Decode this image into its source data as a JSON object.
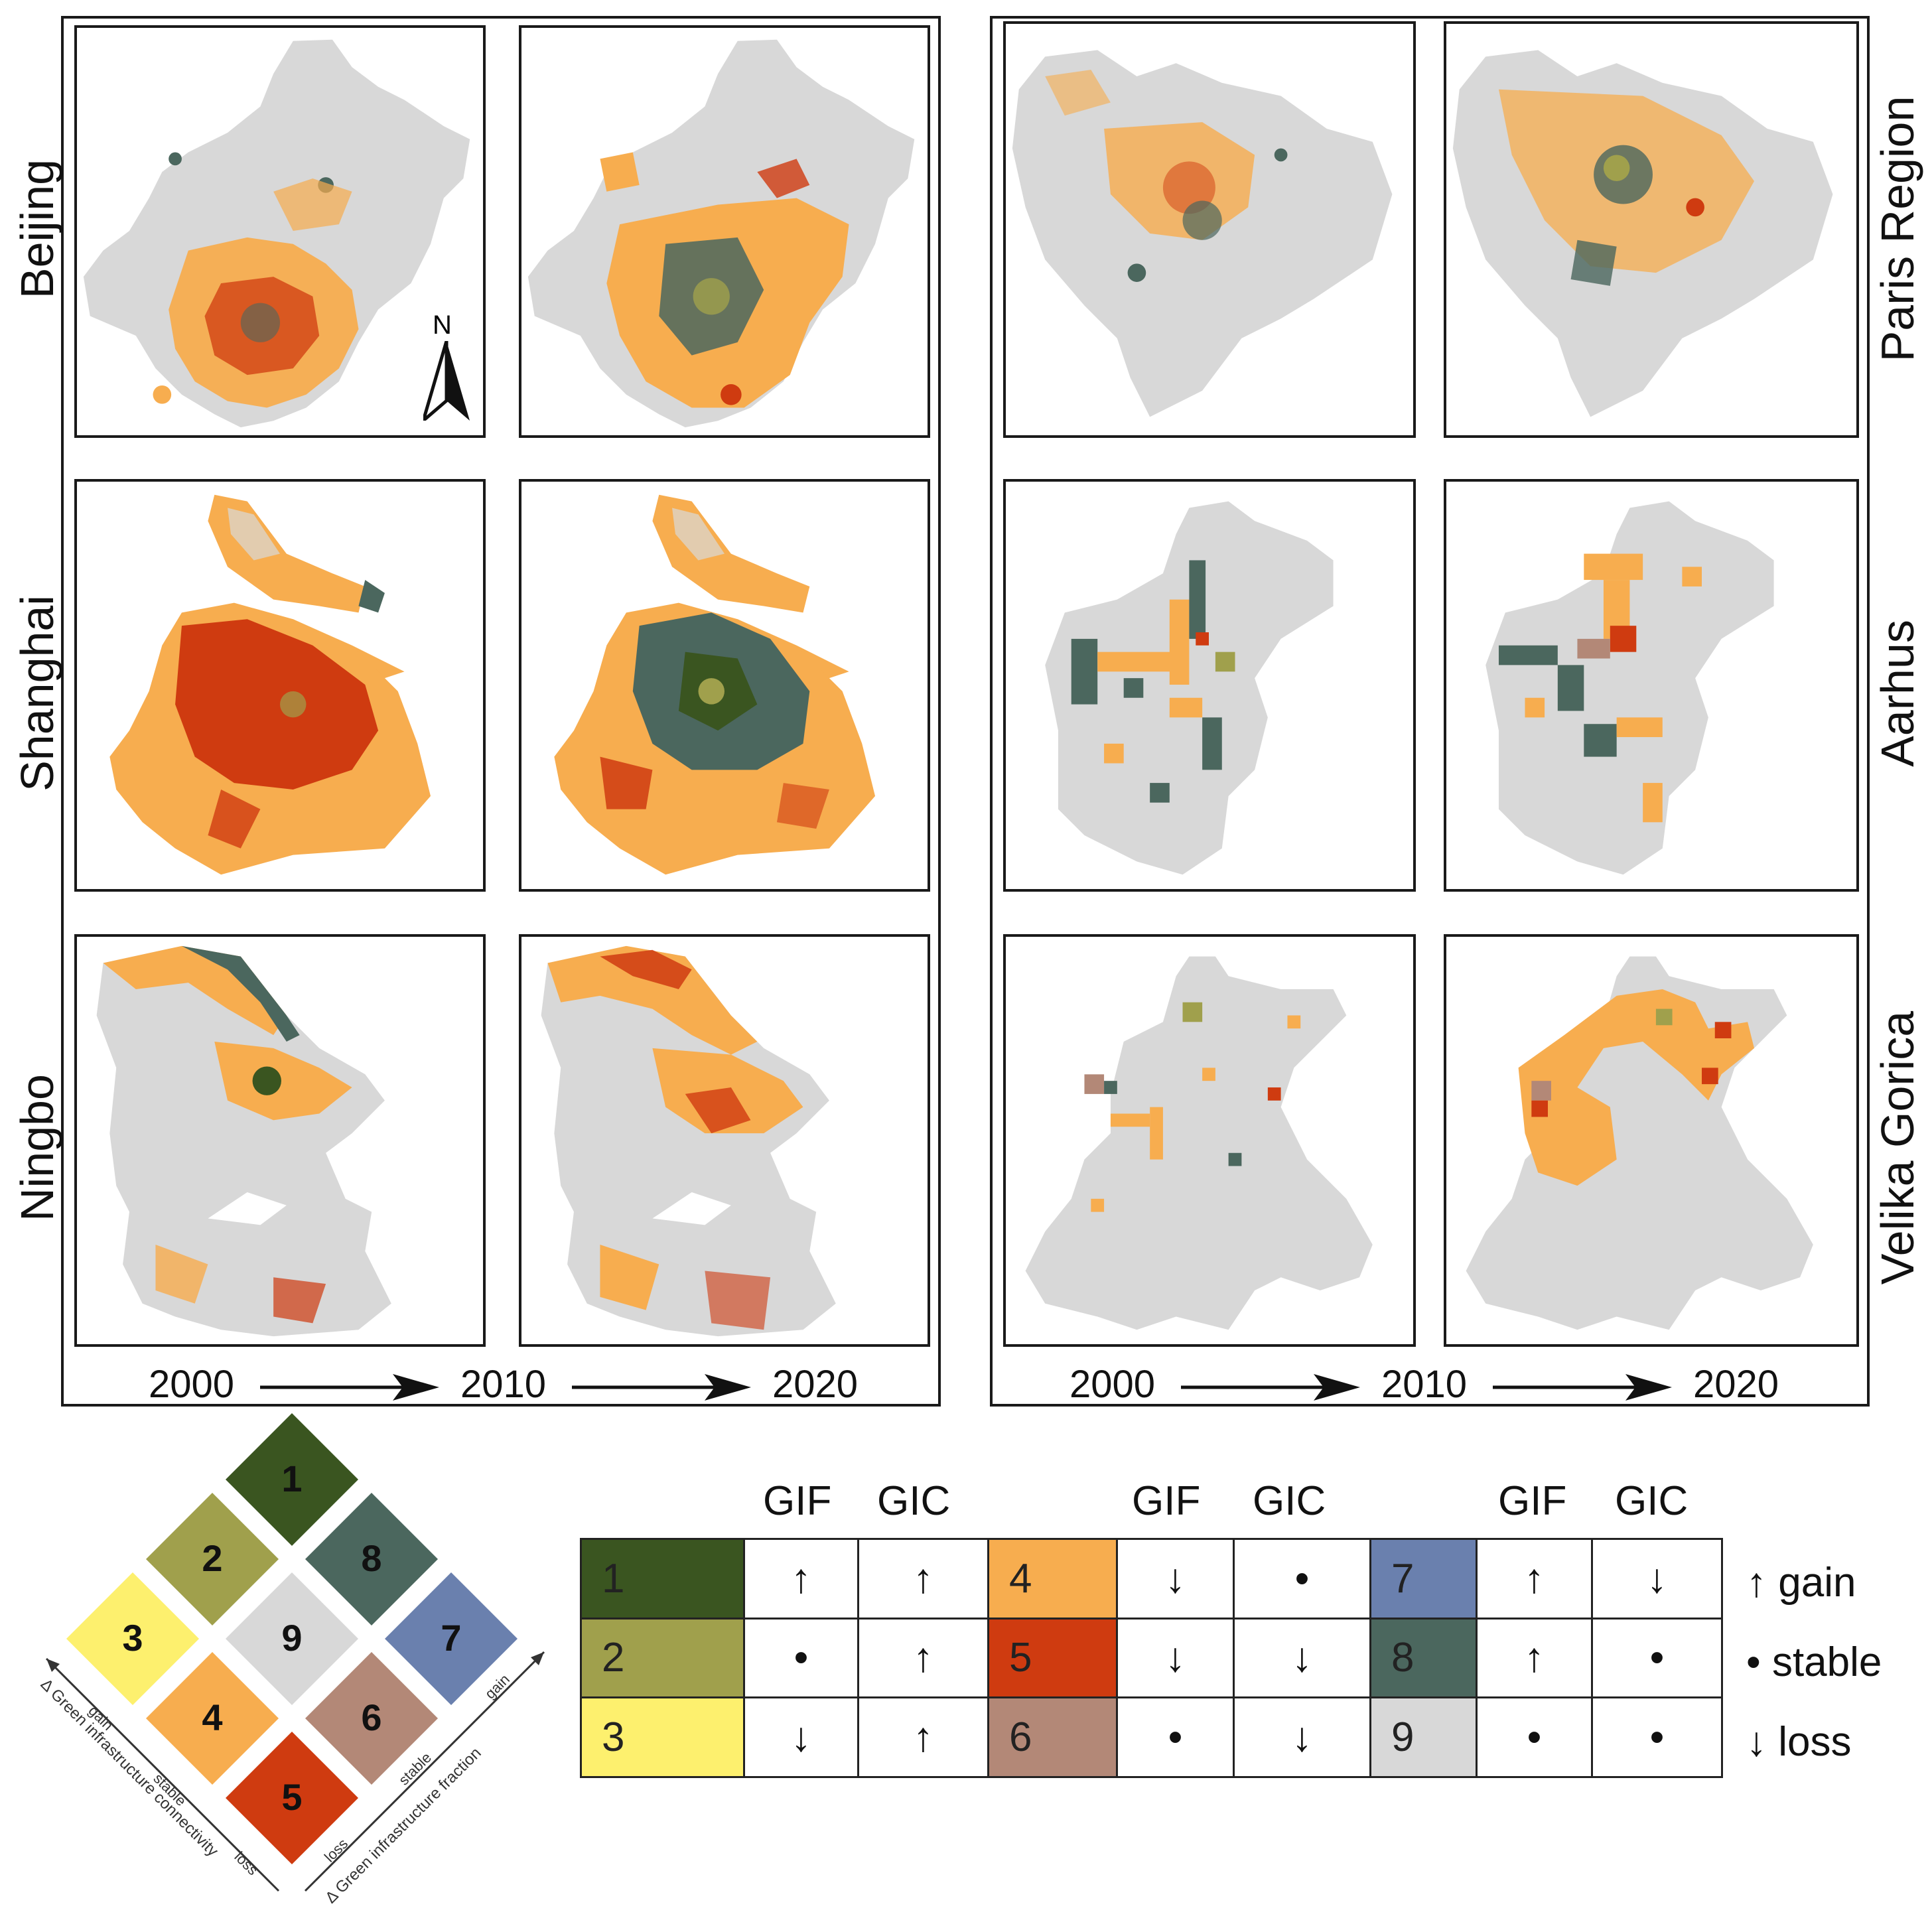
{
  "left_panel": {
    "rows": [
      "Beijing",
      "Shanghai",
      "Ningbo"
    ],
    "timeline": [
      "2000",
      "2010",
      "2020"
    ]
  },
  "right_panel": {
    "rows": [
      "Paris Region",
      "Aarhus",
      "Velika Gorica"
    ],
    "timeline": [
      "2000",
      "2010",
      "2020"
    ]
  },
  "north_arrow": "N",
  "colors": {
    "c1": "#3a5520",
    "c2": "#a0a04c",
    "c3": "#fdf06e",
    "c4": "#f7ad4f",
    "c5": "#cf3b10",
    "c6": "#b38877",
    "c7": "#6a80ae",
    "c8": "#4b675e",
    "c9": "#d8d8d8"
  },
  "legend": {
    "column_headers": [
      "GIF",
      "GIC",
      "GIF",
      "GIC",
      "GIF",
      "GIC"
    ],
    "rows": [
      [
        {
          "class": "1",
          "gif": "↑",
          "gic": "↑"
        },
        {
          "class": "4",
          "gif": "↓",
          "gic": "•"
        },
        {
          "class": "7",
          "gif": "↑",
          "gic": "↓"
        }
      ],
      [
        {
          "class": "2",
          "gif": "•",
          "gic": "↑"
        },
        {
          "class": "5",
          "gif": "↓",
          "gic": "↓"
        },
        {
          "class": "8",
          "gif": "↑",
          "gic": "•"
        }
      ],
      [
        {
          "class": "3",
          "gif": "↓",
          "gic": "↑"
        },
        {
          "class": "6",
          "gif": "•",
          "gic": "↓"
        },
        {
          "class": "9",
          "gif": "•",
          "gic": "•"
        }
      ]
    ],
    "key": [
      {
        "symbol": "↑",
        "label": "gain"
      },
      {
        "symbol": "•",
        "label": "stable"
      },
      {
        "symbol": "↓",
        "label": "loss"
      }
    ]
  },
  "bivariate_key": {
    "cells": [
      "1",
      "2",
      "3",
      "4",
      "5",
      "6",
      "7",
      "8",
      "9"
    ],
    "left_axis_title": "Δ Green infrastructure connectivity",
    "left_axis_ticks": [
      "gain",
      "stable",
      "loss"
    ],
    "right_axis_title": "Δ Green infrastructure fraction",
    "right_axis_ticks": [
      "loss",
      "stable",
      "gain"
    ]
  }
}
